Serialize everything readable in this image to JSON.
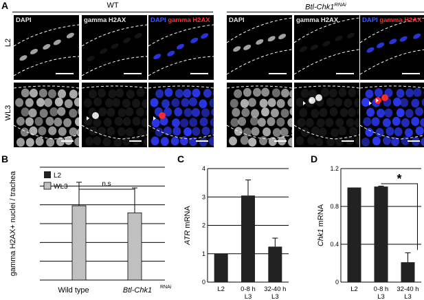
{
  "panels": {
    "a": {
      "letter": "A"
    },
    "b": {
      "letter": "B"
    },
    "c": {
      "letter": "C"
    },
    "d": {
      "letter": "D"
    }
  },
  "micrographs": {
    "conditions": [
      "WT",
      "Btl-Chk1"
    ],
    "condition_superscript": "RNAi",
    "rows": [
      "L2",
      "WL3"
    ],
    "channels": {
      "dapi": "DAPI",
      "h2ax": "gamma H2AX",
      "merge_dapi": "DAPI",
      "merge_h2ax": "gamma H2AX"
    }
  },
  "colors": {
    "dapi_blue": "#2f3cff",
    "h2ax_red": "#ff2a2a",
    "bar_dark": "#222222",
    "bar_gray": "#c0c0c0"
  },
  "chart_data": [
    {
      "panel": "B",
      "type": "bar",
      "ylabel": "gamma H2AX+ nuclei / trachea",
      "categories": [
        "Wild type",
        "Btl-Chk1"
      ],
      "category_superscript": [
        "",
        "RNAi"
      ],
      "legend": [
        "L2",
        "WL3"
      ],
      "legend_position": "top-left",
      "series": [
        {
          "name": "WL3",
          "values": [
            1.58,
            1.43
          ],
          "errors": [
            0.5,
            0.53
          ]
        }
      ],
      "ylim": [
        0,
        2.4
      ],
      "grid": true,
      "annotation": "n.s"
    },
    {
      "panel": "C",
      "type": "bar",
      "ylabel_italic": "ATR",
      "ylabel_rest": " mRNA",
      "categories": [
        "L2",
        "0-8 h\nL3",
        "32-40 h\nL3"
      ],
      "values": [
        1.0,
        3.05,
        1.25
      ],
      "errors": [
        0,
        0.55,
        0.3
      ],
      "yticks": [
        "0",
        "1",
        "2",
        "3",
        "4"
      ],
      "ylim": [
        0,
        4
      ],
      "grid": true
    },
    {
      "panel": "D",
      "type": "bar",
      "ylabel_italic": "Chk1",
      "ylabel_rest": " mRNA",
      "categories": [
        "L2",
        "0-8 h\nL3",
        "32-40 h\nL3"
      ],
      "values": [
        1.0,
        1.01,
        0.21
      ],
      "errors": [
        0,
        0.005,
        0.1
      ],
      "yticks": [
        "0",
        "0.4",
        "0.8",
        "1.2"
      ],
      "ylim": [
        0,
        1.2
      ],
      "grid": true,
      "annotation": "*"
    }
  ]
}
